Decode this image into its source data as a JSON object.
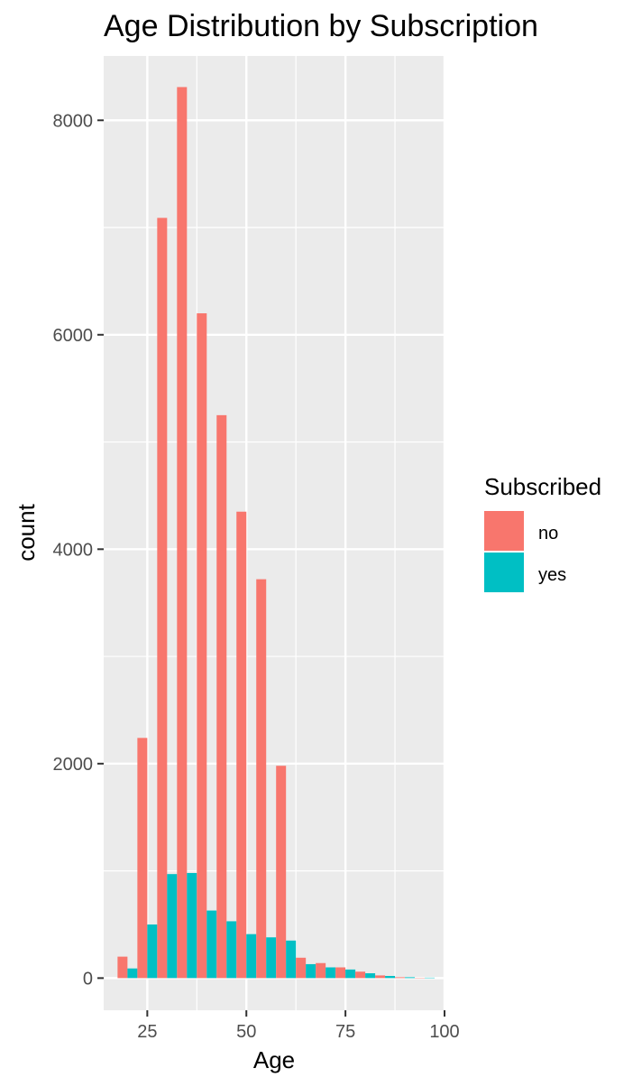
{
  "chart_data": {
    "type": "bar",
    "title": "Age Distribution by Subscription",
    "xlabel": "Age",
    "ylabel": "count",
    "xlim": [
      14,
      100
    ],
    "ylim": [
      -300,
      8600
    ],
    "x_ticks": [
      25,
      50,
      75,
      100
    ],
    "y_ticks": [
      0,
      2000,
      4000,
      6000,
      8000
    ],
    "grid": true,
    "legend": {
      "title": "Subscribed",
      "position": "right"
    },
    "bin_width": 5,
    "bin_centers": [
      20,
      25,
      30,
      35,
      40,
      45,
      50,
      55,
      60,
      65,
      70,
      75,
      80,
      85,
      90,
      95
    ],
    "series": [
      {
        "name": "no",
        "color": "#F8766D",
        "values": [
          200,
          2240,
          7090,
          8310,
          6200,
          5250,
          4350,
          3720,
          1980,
          190,
          140,
          100,
          60,
          25,
          8,
          3
        ]
      },
      {
        "name": "yes",
        "color": "#00BFC4",
        "values": [
          90,
          500,
          970,
          980,
          630,
          530,
          410,
          380,
          350,
          130,
          100,
          80,
          45,
          20,
          8,
          4
        ]
      }
    ]
  }
}
